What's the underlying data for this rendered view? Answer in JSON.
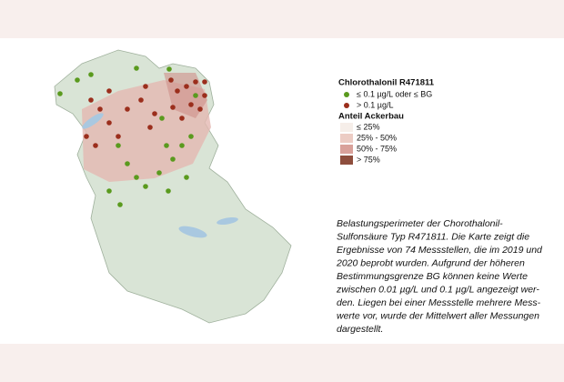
{
  "legend": {
    "title": "Chlorothalonil R471811",
    "items": [
      "≤ 0.1 µg/L oder ≤ BG",
      "> 0.1 µg/L"
    ],
    "subtitle": "Anteil Ackerbau",
    "classes": [
      "≤ 25%",
      "25% - 50%",
      "50% - 75%",
      "> 75%"
    ]
  },
  "caption": [
    "Belastungsperimeter der Chorothalonil-",
    "Sulfonsäure Typ R471811. Die Karte zeigt die",
    "Ergebnisse von 74 Messstellen, die im 2019 und",
    "2020 beprobt wurden. Aufgrund der höheren",
    "Bestimmungsgrenze BG können keine Werte",
    "zwischen 0.01 µg/L und 0.1 µg/L angezeigt wer-",
    "den. Liegen bei einer Messstelle mehrere Mess-",
    "werte vor, wurde der Mittelwert aller Messungen",
    "dargestellt."
  ]
}
